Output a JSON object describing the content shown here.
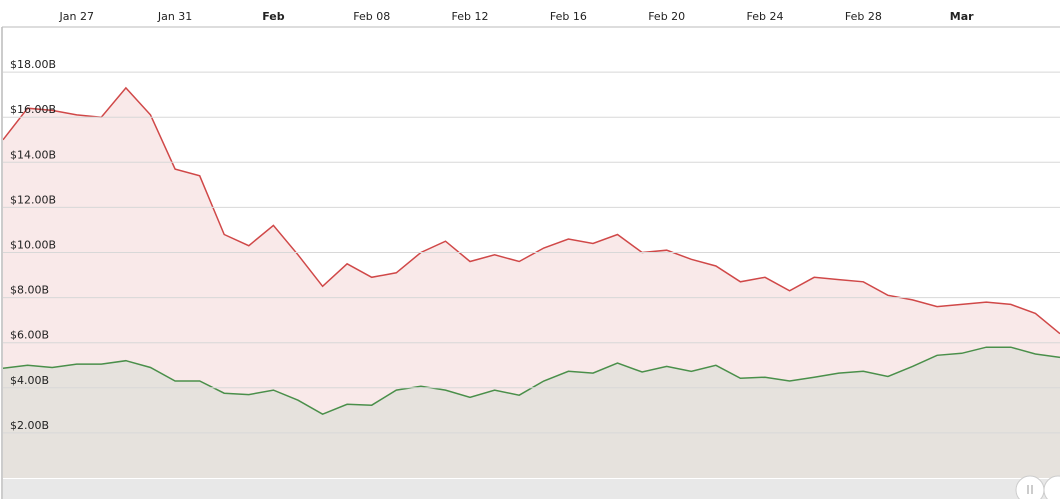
{
  "chart_data": {
    "type": "area",
    "x": [
      "Jan 24",
      "Jan 25",
      "Jan 26",
      "Jan 27",
      "Jan 28",
      "Jan 29",
      "Jan 30",
      "Jan 31",
      "Feb 01",
      "Feb 02",
      "Feb 03",
      "Feb 04",
      "Feb 05",
      "Feb 06",
      "Feb 07",
      "Feb 08",
      "Feb 09",
      "Feb 10",
      "Feb 11",
      "Feb 12",
      "Feb 13",
      "Feb 14",
      "Feb 15",
      "Feb 16",
      "Feb 17",
      "Feb 18",
      "Feb 19",
      "Feb 20",
      "Feb 21",
      "Feb 22",
      "Feb 23",
      "Feb 24",
      "Feb 25",
      "Feb 26",
      "Feb 27",
      "Feb 28",
      "Mar 01",
      "Mar 02",
      "Mar 03",
      "Mar 04",
      "Mar 05",
      "Mar 06",
      "Mar 07",
      "Mar 08"
    ],
    "series": [
      {
        "color": "#d04848",
        "fill": "#f9e9e9",
        "values": [
          15.0,
          16.4,
          16.3,
          16.1,
          16.0,
          17.3,
          16.1,
          13.7,
          13.4,
          10.8,
          10.3,
          11.2,
          9.9,
          8.5,
          9.5,
          8.9,
          9.1,
          10.0,
          10.5,
          9.6,
          9.9,
          9.6,
          10.2,
          10.6,
          10.4,
          10.8,
          10.0,
          10.1,
          9.7,
          9.4,
          8.7,
          8.9,
          8.3,
          8.9,
          8.8,
          8.7,
          8.1,
          7.9,
          7.6,
          7.7,
          7.8,
          7.7,
          7.3,
          6.4
        ]
      },
      {
        "color": "#4a8f4a",
        "fill": "#e6e2dd",
        "values": [
          4.87,
          5.0,
          4.9,
          5.05,
          5.05,
          5.2,
          4.9,
          4.3,
          4.3,
          3.76,
          3.7,
          3.9,
          3.45,
          2.83,
          3.27,
          3.23,
          3.9,
          4.07,
          3.9,
          3.58,
          3.9,
          3.67,
          4.3,
          4.73,
          4.65,
          5.1,
          4.7,
          4.95,
          4.73,
          5.0,
          4.42,
          4.47,
          4.3,
          4.47,
          4.65,
          4.73,
          4.5,
          4.95,
          5.44,
          5.53,
          5.8,
          5.8,
          5.5,
          5.35
        ]
      }
    ],
    "xlim": [
      "Jan 24",
      "Mar 08"
    ],
    "xticks": [
      "Jan 27",
      "Jan 31",
      {
        "value": "Feb 04",
        "label": "Feb"
      },
      "Feb 08",
      "Feb 12",
      "Feb 16",
      "Feb 20",
      "Feb 24",
      "Feb 28",
      {
        "value": "Mar 04",
        "label": "Mar"
      }
    ],
    "ylim": [
      0,
      20
    ],
    "yticks": [
      {
        "value": 2,
        "label": "$2.00B"
      },
      {
        "value": 4,
        "label": "$4.00B"
      },
      {
        "value": 6,
        "label": "$6.00B"
      },
      {
        "value": 8,
        "label": "$8.00B"
      },
      {
        "value": 10,
        "label": "$10.00B"
      },
      {
        "value": 12,
        "label": "$12.00B"
      },
      {
        "value": 14,
        "label": "$14.00B"
      },
      {
        "value": 16,
        "label": "$16.00B"
      },
      {
        "value": 18,
        "label": "$18.00B"
      }
    ],
    "grid": true
  }
}
